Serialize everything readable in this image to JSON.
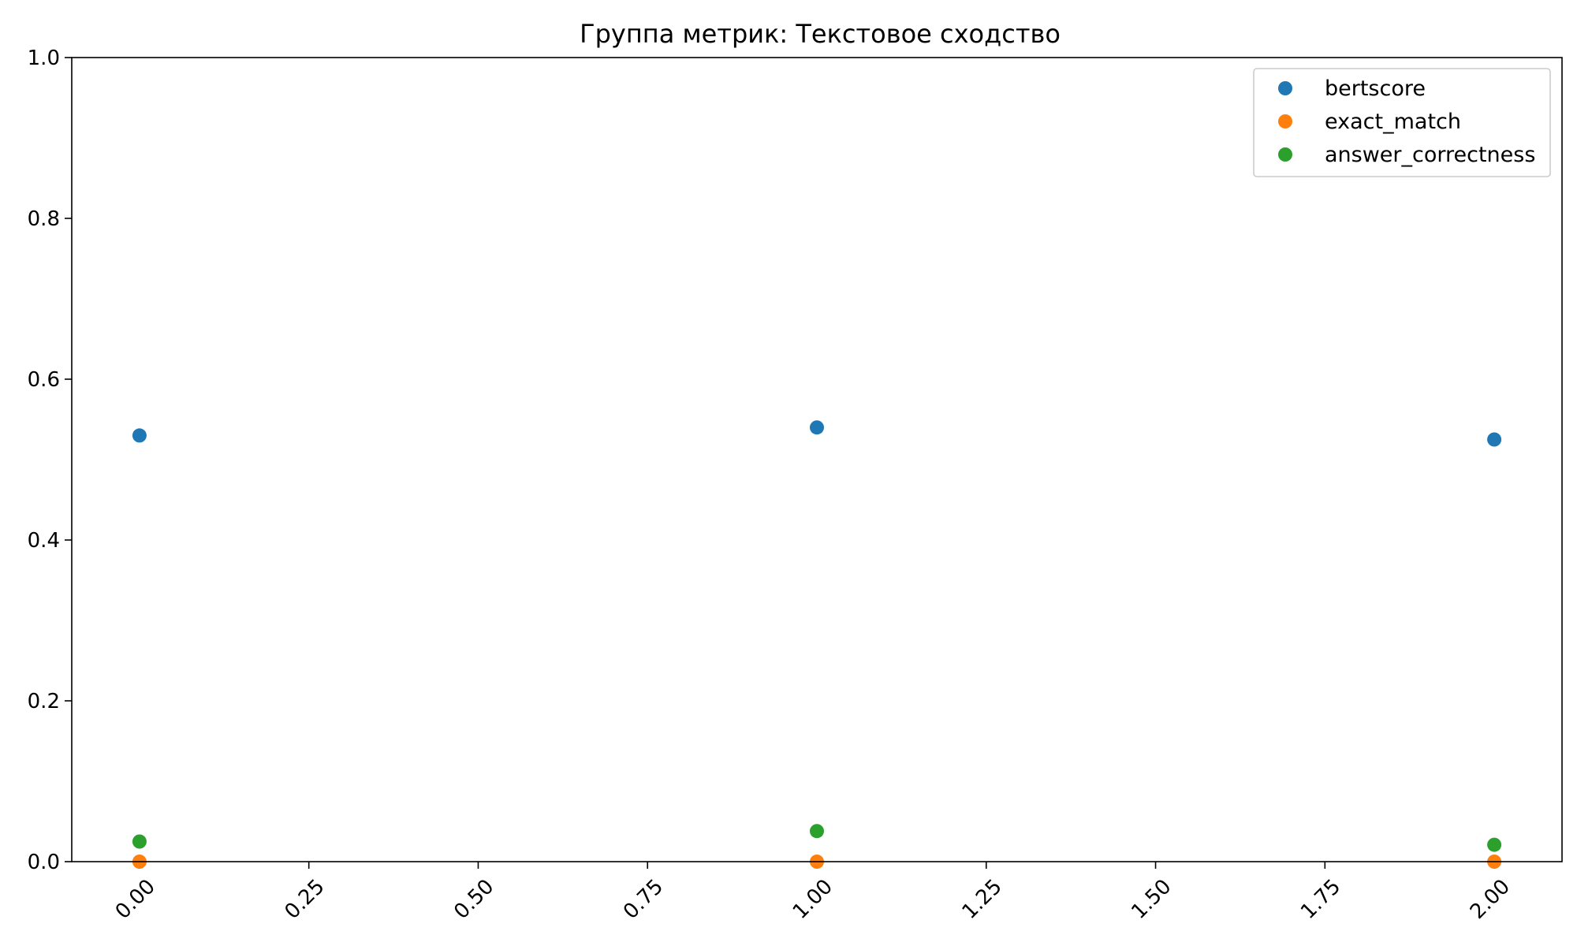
{
  "chart_data": {
    "type": "scatter",
    "title": "Группа метрик: Текстовое сходство",
    "xlabel": "",
    "ylabel": "",
    "xlim": [
      -0.1,
      2.1
    ],
    "ylim": [
      0,
      1
    ],
    "x_ticks": [
      0.0,
      0.25,
      0.5,
      0.75,
      1.0,
      1.25,
      1.5,
      1.75,
      2.0
    ],
    "x_tick_labels": [
      "0.00",
      "0.25",
      "0.50",
      "0.75",
      "1.00",
      "1.25",
      "1.50",
      "1.75",
      "2.00"
    ],
    "y_ticks": [
      0.0,
      0.2,
      0.4,
      0.6,
      0.8,
      1.0
    ],
    "y_tick_labels": [
      "0.0",
      "0.2",
      "0.4",
      "0.6",
      "0.8",
      "1.0"
    ],
    "grid": false,
    "legend_position": "top-right",
    "series": [
      {
        "name": "bertscore",
        "color": "#1f77b4",
        "x": [
          0,
          1,
          2
        ],
        "y": [
          0.53,
          0.54,
          0.525
        ]
      },
      {
        "name": "exact_match",
        "color": "#ff7f0e",
        "x": [
          0,
          1,
          2
        ],
        "y": [
          0.0,
          0.0,
          0.0
        ]
      },
      {
        "name": "answer_correctness",
        "color": "#2ca02c",
        "x": [
          0,
          1,
          2
        ],
        "y": [
          0.025,
          0.038,
          0.021
        ]
      }
    ]
  }
}
